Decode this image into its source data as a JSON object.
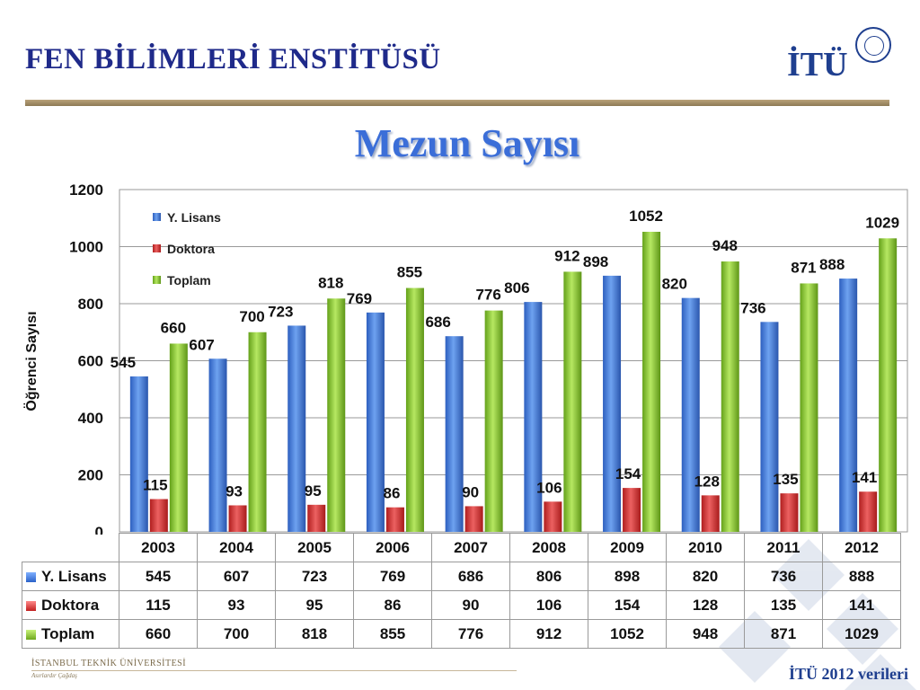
{
  "header": {
    "title": "FEN BİLİMLERİ ENSTİTÜSÜ",
    "logo": "İTÜ",
    "logo_icon": "university-seal-icon"
  },
  "main_title": "Mezun Sayısı",
  "chart_data": {
    "type": "bar",
    "categories": [
      "2003",
      "2004",
      "2005",
      "2006",
      "2007",
      "2008",
      "2009",
      "2010",
      "2011",
      "2012"
    ],
    "series": [
      {
        "name": "Y. Lisans",
        "values": [
          545,
          607,
          723,
          769,
          686,
          806,
          898,
          820,
          736,
          888
        ],
        "color": "#3a76d8"
      },
      {
        "name": "Doktora",
        "values": [
          115,
          93,
          95,
          86,
          90,
          106,
          154,
          128,
          135,
          141
        ],
        "color": "#d43535"
      },
      {
        "name": "Toplam",
        "values": [
          660,
          700,
          818,
          855,
          776,
          912,
          1052,
          948,
          871,
          1029
        ],
        "color": "#8dc63f"
      }
    ],
    "title": "Mezun Sayısı",
    "xlabel": "",
    "ylabel": "Öğrenci Sayısı",
    "ylim": [
      0,
      1200
    ],
    "yticks": [
      "0",
      "200",
      "400",
      "600",
      "800",
      "1000",
      "1200"
    ],
    "grid": true,
    "legend": "top-left"
  },
  "footer": {
    "left": "İSTANBUL TEKNİK ÜNİVERSİTESİ",
    "left_sub": "Asırlardır Çağdaş",
    "right": "İTÜ 2012 verileri"
  }
}
